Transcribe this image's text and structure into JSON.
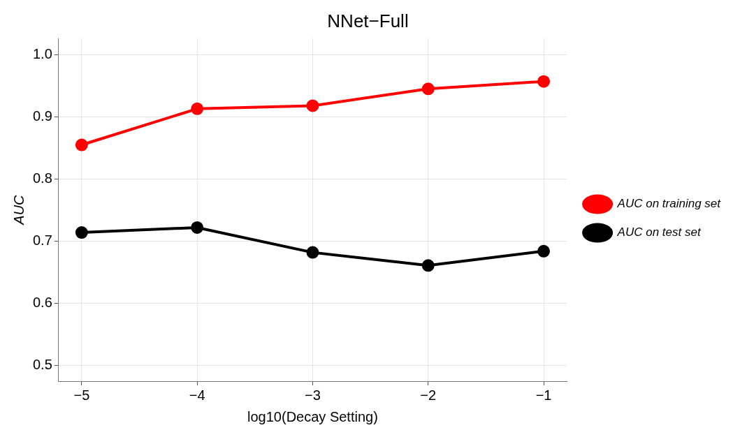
{
  "chart_data": {
    "type": "line",
    "title": "NNet−Full",
    "xlabel": "log10(Decay Setting)",
    "ylabel": "AUC",
    "x": [
      -5,
      -4,
      -3,
      -2,
      -1
    ],
    "series": [
      {
        "name": "AUC on training set",
        "color": "#ff0000",
        "values": [
          0.855,
          0.913,
          0.918,
          0.945,
          0.957
        ]
      },
      {
        "name": "AUC on test set",
        "color": "#000000",
        "values": [
          0.714,
          0.722,
          0.682,
          0.661,
          0.684
        ]
      }
    ],
    "xlim": [
      -5.2,
      -0.8
    ],
    "xticks": [
      {
        "value": -5,
        "label": "−5"
      },
      {
        "value": -4,
        "label": "−4"
      },
      {
        "value": -3,
        "label": "−3"
      },
      {
        "value": -2,
        "label": "−2"
      },
      {
        "value": -1,
        "label": "−1"
      }
    ],
    "ylim": [
      0.475,
      1.026
    ],
    "yticks": [
      {
        "value": 0.5,
        "label": "0.5"
      },
      {
        "value": 0.6,
        "label": "0.6"
      },
      {
        "value": 0.7,
        "label": "0.7"
      },
      {
        "value": 0.8,
        "label": "0.8"
      },
      {
        "value": 0.9,
        "label": "0.9"
      },
      {
        "value": 1.0,
        "label": "1.0"
      }
    ],
    "grid": true,
    "legend": "right",
    "marker": "circle",
    "line_style": "solid"
  }
}
